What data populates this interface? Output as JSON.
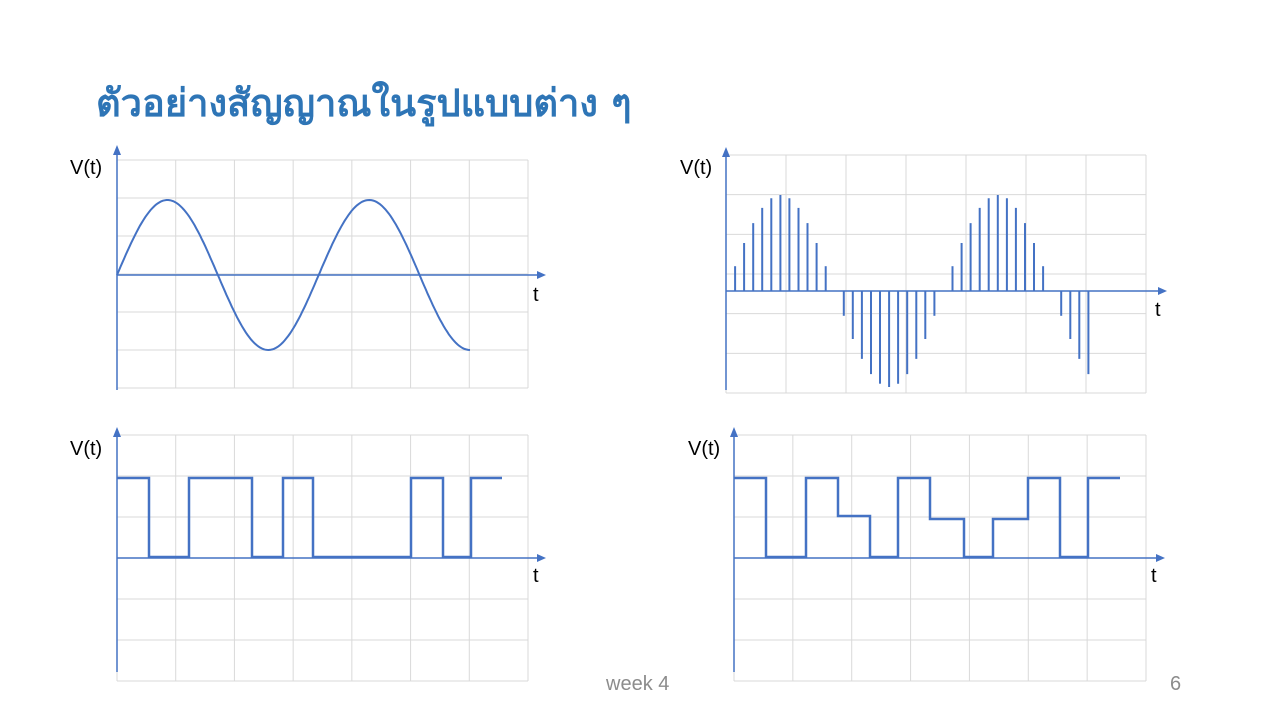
{
  "slide": {
    "title": "ตัวอย่างสัญญาณในรูปแบบต่าง ๆ",
    "footer_text": "week 4",
    "page_number": "6"
  },
  "colors": {
    "signal": "#4472C4",
    "axis": "#4472C4",
    "grid": "#d9d9d9",
    "title": "#2E75B6"
  },
  "plots": [
    {
      "id": "analog",
      "y_label": "V(t)",
      "x_label": "t",
      "signal_type": "continuous sine wave",
      "cycles": 1.75
    },
    {
      "id": "sampled",
      "y_label": "V(t)",
      "x_label": "t",
      "signal_type": "discrete-time samples of sine wave",
      "samples": 41
    },
    {
      "id": "binary",
      "y_label": "V(t)",
      "x_label": "t",
      "signal_type": "digital binary (2 levels)",
      "levels": [
        1,
        0,
        1,
        0,
        1,
        0,
        1,
        0,
        1
      ]
    },
    {
      "id": "multilevel",
      "y_label": "V(t)",
      "x_label": "t",
      "signal_type": "digital multi-level",
      "levels": [
        2,
        0,
        2,
        1,
        0,
        2,
        1,
        0,
        1,
        2,
        0,
        2
      ]
    }
  ]
}
